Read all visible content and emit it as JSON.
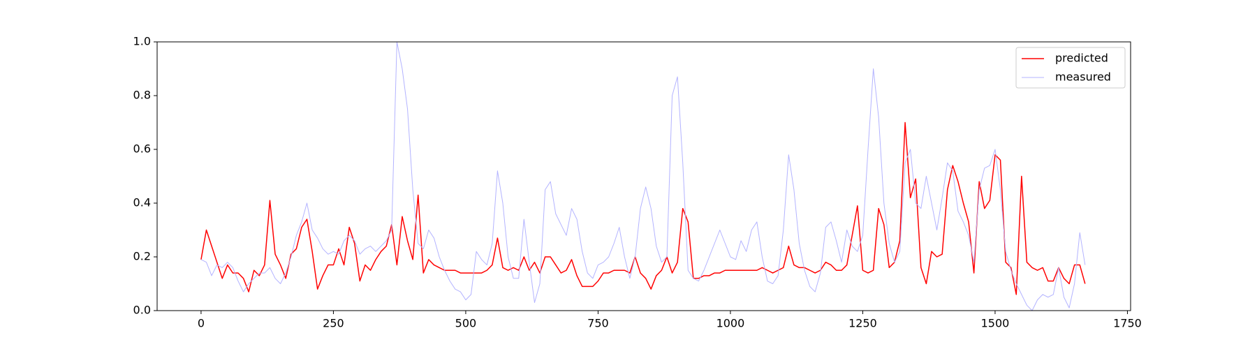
{
  "chart_data": {
    "type": "line",
    "x": [
      0,
      10,
      20,
      30,
      40,
      50,
      60,
      70,
      80,
      90,
      100,
      110,
      120,
      130,
      140,
      150,
      160,
      170,
      180,
      190,
      200,
      210,
      220,
      230,
      240,
      250,
      260,
      270,
      280,
      290,
      300,
      310,
      320,
      330,
      340,
      350,
      360,
      370,
      380,
      390,
      400,
      410,
      420,
      430,
      440,
      450,
      460,
      470,
      480,
      490,
      500,
      510,
      520,
      530,
      540,
      550,
      560,
      570,
      580,
      590,
      600,
      610,
      620,
      630,
      640,
      650,
      660,
      670,
      680,
      690,
      700,
      710,
      720,
      730,
      740,
      750,
      760,
      770,
      780,
      790,
      800,
      810,
      820,
      830,
      840,
      850,
      860,
      870,
      880,
      890,
      900,
      910,
      920,
      930,
      940,
      950,
      960,
      970,
      980,
      990,
      1000,
      1010,
      1020,
      1030,
      1040,
      1050,
      1060,
      1070,
      1080,
      1090,
      1100,
      1110,
      1120,
      1130,
      1140,
      1150,
      1160,
      1170,
      1180,
      1190,
      1200,
      1210,
      1220,
      1230,
      1240,
      1250,
      1260,
      1270,
      1280,
      1290,
      1300,
      1310,
      1320,
      1330,
      1340,
      1350,
      1360,
      1370,
      1380,
      1390,
      1400,
      1410,
      1420,
      1430,
      1440,
      1450,
      1460,
      1470,
      1480,
      1490,
      1500,
      1510,
      1520,
      1530,
      1540,
      1550,
      1560,
      1570,
      1580,
      1590,
      1600,
      1610,
      1620,
      1630,
      1640,
      1650,
      1660,
      1670
    ],
    "series": [
      {
        "name": "predicted",
        "color": "#ff0000",
        "width": 1.5,
        "values": [
          0.19,
          0.3,
          0.24,
          0.18,
          0.12,
          0.17,
          0.14,
          0.14,
          0.12,
          0.07,
          0.15,
          0.13,
          0.17,
          0.41,
          0.21,
          0.17,
          0.12,
          0.21,
          0.23,
          0.31,
          0.34,
          0.22,
          0.08,
          0.13,
          0.17,
          0.17,
          0.23,
          0.17,
          0.31,
          0.25,
          0.11,
          0.17,
          0.15,
          0.19,
          0.22,
          0.24,
          0.32,
          0.17,
          0.35,
          0.26,
          0.19,
          0.43,
          0.14,
          0.19,
          0.17,
          0.16,
          0.15,
          0.15,
          0.15,
          0.14,
          0.14,
          0.14,
          0.14,
          0.14,
          0.15,
          0.17,
          0.27,
          0.16,
          0.15,
          0.16,
          0.15,
          0.2,
          0.15,
          0.18,
          0.14,
          0.2,
          0.2,
          0.17,
          0.14,
          0.15,
          0.19,
          0.13,
          0.09,
          0.09,
          0.09,
          0.11,
          0.14,
          0.14,
          0.15,
          0.15,
          0.15,
          0.14,
          0.2,
          0.14,
          0.12,
          0.08,
          0.13,
          0.15,
          0.2,
          0.14,
          0.18,
          0.38,
          0.33,
          0.12,
          0.12,
          0.13,
          0.13,
          0.14,
          0.14,
          0.15,
          0.15,
          0.15,
          0.15,
          0.15,
          0.15,
          0.15,
          0.16,
          0.15,
          0.14,
          0.15,
          0.16,
          0.24,
          0.17,
          0.16,
          0.16,
          0.15,
          0.14,
          0.15,
          0.18,
          0.17,
          0.15,
          0.15,
          0.17,
          0.28,
          0.39,
          0.15,
          0.14,
          0.15,
          0.38,
          0.32,
          0.16,
          0.18,
          0.26,
          0.7,
          0.42,
          0.49,
          0.16,
          0.1,
          0.22,
          0.2,
          0.21,
          0.45,
          0.54,
          0.48,
          0.4,
          0.33,
          0.14,
          0.48,
          0.38,
          0.41,
          0.58,
          0.56,
          0.18,
          0.16,
          0.06,
          0.5,
          0.18,
          0.16,
          0.15,
          0.16,
          0.11,
          0.11,
          0.16,
          0.12,
          0.1,
          0.17,
          0.17,
          0.1
        ]
      },
      {
        "name": "measured",
        "color": "#b3b3ff",
        "width": 1,
        "values": [
          0.19,
          0.18,
          0.13,
          0.17,
          0.16,
          0.18,
          0.16,
          0.11,
          0.07,
          0.1,
          0.12,
          0.14,
          0.14,
          0.16,
          0.12,
          0.1,
          0.14,
          0.2,
          0.28,
          0.33,
          0.4,
          0.3,
          0.27,
          0.23,
          0.21,
          0.22,
          0.21,
          0.26,
          0.28,
          0.26,
          0.21,
          0.23,
          0.24,
          0.22,
          0.24,
          0.26,
          0.3,
          1.0,
          0.9,
          0.75,
          0.45,
          0.25,
          0.23,
          0.3,
          0.27,
          0.2,
          0.15,
          0.11,
          0.08,
          0.07,
          0.04,
          0.06,
          0.22,
          0.19,
          0.17,
          0.25,
          0.52,
          0.4,
          0.2,
          0.12,
          0.12,
          0.34,
          0.18,
          0.03,
          0.1,
          0.45,
          0.48,
          0.36,
          0.32,
          0.28,
          0.38,
          0.34,
          0.22,
          0.14,
          0.12,
          0.17,
          0.18,
          0.2,
          0.25,
          0.31,
          0.2,
          0.12,
          0.2,
          0.38,
          0.46,
          0.38,
          0.24,
          0.18,
          0.2,
          0.8,
          0.87,
          0.55,
          0.15,
          0.12,
          0.11,
          0.15,
          0.2,
          0.25,
          0.3,
          0.25,
          0.2,
          0.19,
          0.26,
          0.22,
          0.3,
          0.33,
          0.2,
          0.11,
          0.1,
          0.13,
          0.3,
          0.58,
          0.45,
          0.25,
          0.15,
          0.09,
          0.07,
          0.14,
          0.31,
          0.33,
          0.26,
          0.18,
          0.3,
          0.24,
          0.22,
          0.28,
          0.6,
          0.9,
          0.72,
          0.4,
          0.25,
          0.18,
          0.22,
          0.55,
          0.6,
          0.4,
          0.38,
          0.5,
          0.4,
          0.3,
          0.42,
          0.55,
          0.52,
          0.37,
          0.33,
          0.28,
          0.18,
          0.45,
          0.53,
          0.54,
          0.6,
          0.45,
          0.22,
          0.15,
          0.1,
          0.06,
          0.02,
          0.0,
          0.04,
          0.06,
          0.05,
          0.06,
          0.16,
          0.05,
          0.01,
          0.1,
          0.29,
          0.17
        ]
      }
    ],
    "xlim": [
      -83,
      1756
    ],
    "ylim": [
      0,
      1
    ],
    "xticks": [
      0,
      250,
      500,
      750,
      1000,
      1250,
      1500,
      1750
    ],
    "yticks": [
      {
        "value": 0,
        "label": "0.0"
      },
      {
        "value": 0.2,
        "label": "0.2"
      },
      {
        "value": 0.4,
        "label": "0.4"
      },
      {
        "value": 0.6,
        "label": "0.6"
      },
      {
        "value": 0.8,
        "label": "0.8"
      },
      {
        "value": 1,
        "label": "1.0"
      }
    ],
    "legend": "upper right",
    "grid": false
  }
}
